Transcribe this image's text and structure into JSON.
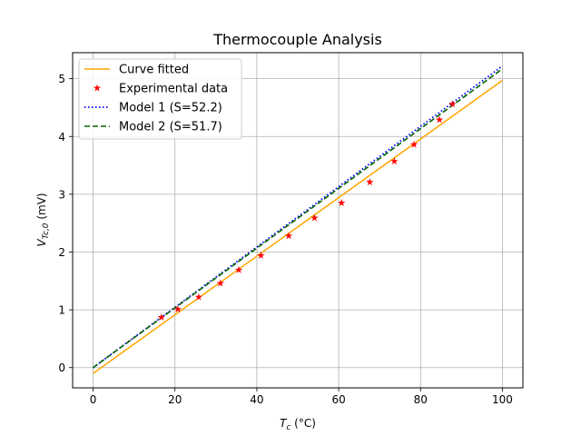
{
  "chart_data": {
    "type": "line",
    "title": "Thermocouple Analysis",
    "xlabel_main": "T",
    "xlabel_sub": "c",
    "xlabel_unit": " (°C)",
    "ylabel_main": "V",
    "ylabel_sub": "Tc,0",
    "ylabel_unit": " (mV)",
    "xlim": [
      -5,
      105
    ],
    "ylim": [
      -0.35,
      5.45
    ],
    "xticks": [
      0,
      20,
      40,
      60,
      80,
      100
    ],
    "yticks": [
      0,
      1,
      2,
      3,
      4,
      5
    ],
    "grid": true,
    "legend_position": "top-left",
    "series": [
      {
        "name": "Curve fitted",
        "style": "line",
        "color": "#ffa500",
        "x": [
          0,
          100
        ],
        "y": [
          -0.1,
          4.97
        ]
      },
      {
        "name": "Experimental data",
        "style": "markers",
        "marker": "star",
        "color": "#ff0000",
        "x": [
          16.7,
          20.7,
          25.8,
          31.1,
          35.6,
          41.0,
          47.8,
          54.1,
          60.7,
          67.6,
          73.6,
          78.4,
          84.6,
          87.8
        ],
        "y": [
          0.87,
          1.01,
          1.22,
          1.46,
          1.69,
          1.94,
          2.28,
          2.59,
          2.85,
          3.21,
          3.57,
          3.86,
          4.29,
          4.56
        ]
      },
      {
        "name": "Model 1 (S=52.2)",
        "style": "dotted",
        "color": "#0000ff",
        "x": [
          0,
          100
        ],
        "y": [
          0,
          5.22
        ]
      },
      {
        "name": "Model 2 (S=51.7)",
        "style": "dashed",
        "color": "#006400",
        "x": [
          0,
          100
        ],
        "y": [
          0,
          5.17
        ]
      }
    ]
  }
}
